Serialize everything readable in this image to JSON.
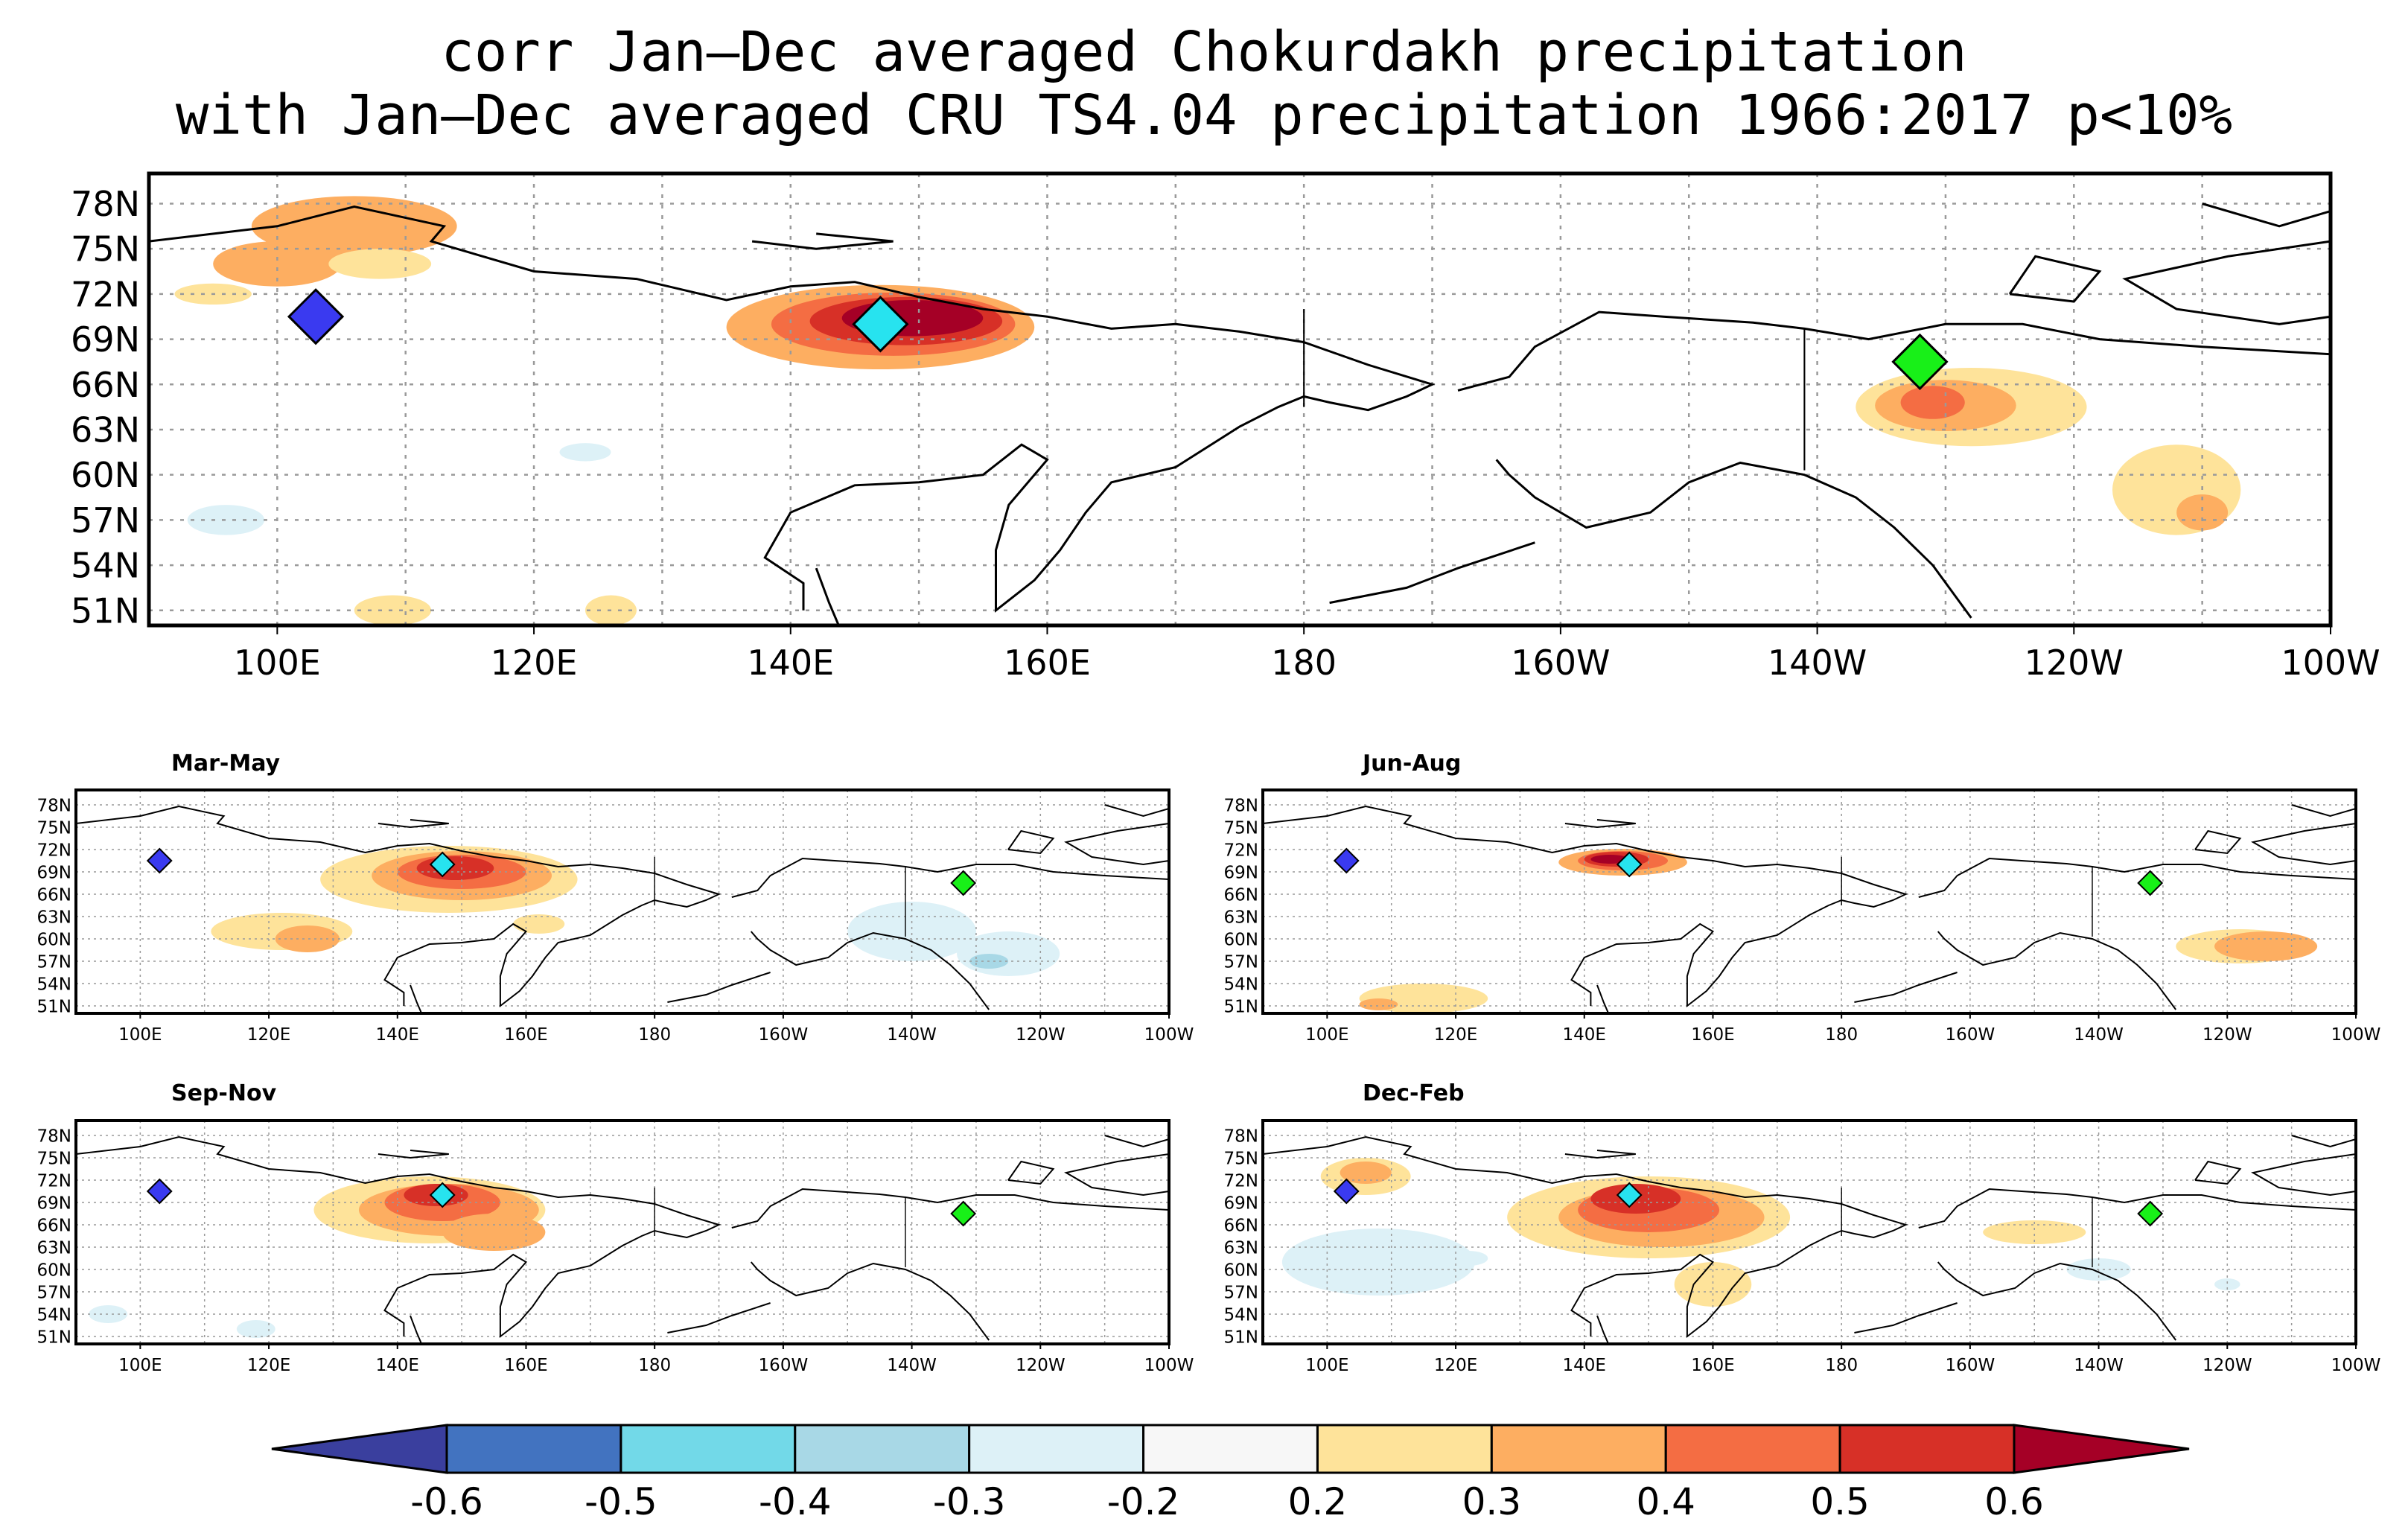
{
  "title": {
    "line1": "corr Jan–Dec averaged Chokurdakh precipitation",
    "line2": "with Jan–Dec averaged CRU TS4.04 precipitation 1966:2017 p<10%"
  },
  "lon_labels": [
    "100E",
    "120E",
    "140E",
    "160E",
    "180",
    "160W",
    "140W",
    "120W",
    "100W"
  ],
  "lat_labels": [
    "78N",
    "75N",
    "72N",
    "69N",
    "66N",
    "63N",
    "60N",
    "57N",
    "54N",
    "51N"
  ],
  "panels": [
    {
      "id": "annual",
      "label": ""
    },
    {
      "id": "mam",
      "label": "Mar-May"
    },
    {
      "id": "jja",
      "label": "Jun-Aug"
    },
    {
      "id": "son",
      "label": "Sep-Nov"
    },
    {
      "id": "djf",
      "label": "Dec-Feb"
    }
  ],
  "markers": [
    {
      "name": "blue-station-marker",
      "lon": 103,
      "lat": 70.5,
      "color": "#3a3af0"
    },
    {
      "name": "cyan-station-marker",
      "lon": 147,
      "lat": 70,
      "color": "#27e3ef"
    },
    {
      "name": "green-station-marker",
      "lon": -132,
      "lat": 67.5,
      "color": "#18f018"
    }
  ],
  "colorbar": {
    "labels": [
      "-0.6",
      "-0.5",
      "-0.4",
      "-0.3",
      "-0.2",
      "0.2",
      "0.3",
      "0.4",
      "0.5",
      "0.6"
    ],
    "colors": [
      "#3a3f9e",
      "#4273c0",
      "#72d9e8",
      "#a8d8e6",
      "#ddf1f7",
      "#f7f7f7",
      "#fee39a",
      "#fdae61",
      "#f46d43",
      "#d73027",
      "#a50026"
    ]
  },
  "chart_data": {
    "type": "heatmap",
    "title": "corr Jan–Dec averaged Chokurdakh precipitation with Jan–Dec averaged CRU TS4.04 precipitation 1966:2017 p<10%",
    "xlim": [
      "90E",
      "100W"
    ],
    "ylim": [
      "50N",
      "80N"
    ],
    "contour_levels": [
      -0.6,
      -0.5,
      -0.4,
      -0.3,
      -0.2,
      0.2,
      0.3,
      0.4,
      0.5,
      0.6
    ],
    "grid": true
  }
}
